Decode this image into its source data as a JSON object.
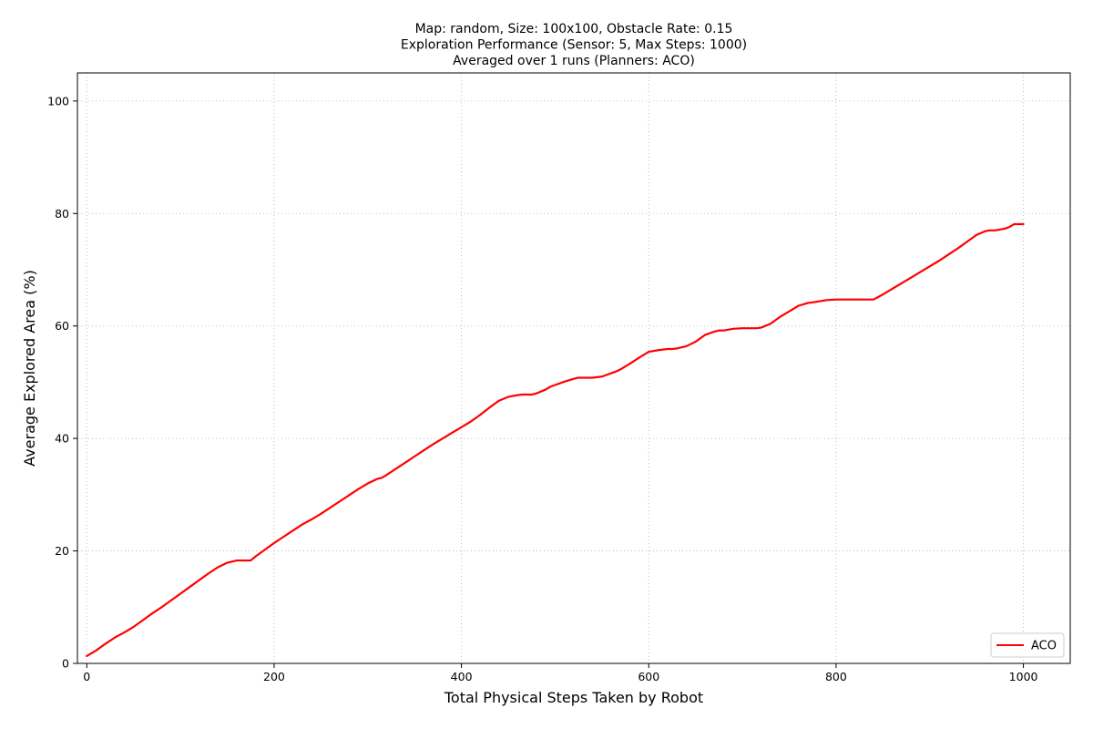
{
  "chart_data": {
    "type": "line",
    "title_lines": [
      "Map: random, Size: 100x100, Obstacle Rate: 0.15",
      "Exploration Performance (Sensor: 5, Max Steps: 1000)",
      "Averaged over 1 runs (Planners: ACO)"
    ],
    "xlabel": "Total Physical Steps Taken by Robot",
    "ylabel": "Average Explored Area (%)",
    "xlim": [
      -10,
      1050
    ],
    "ylim": [
      0,
      105
    ],
    "xticks": [
      0,
      200,
      400,
      600,
      800,
      1000
    ],
    "yticks": [
      0,
      20,
      40,
      60,
      80,
      100
    ],
    "xtick_labels": [
      "0",
      "200",
      "400",
      "600",
      "800",
      "1000"
    ],
    "ytick_labels": [
      "0",
      "20",
      "40",
      "60",
      "80",
      "100"
    ],
    "grid": true,
    "legend_position": "bottom-right",
    "series": [
      {
        "name": "ACO",
        "color": "#ff0000",
        "x": [
          0,
          10,
          20,
          30,
          40,
          50,
          60,
          70,
          80,
          90,
          100,
          110,
          120,
          130,
          140,
          150,
          160,
          165,
          175,
          180,
          190,
          200,
          210,
          220,
          230,
          240,
          250,
          260,
          270,
          280,
          290,
          300,
          310,
          315,
          320,
          330,
          340,
          350,
          360,
          370,
          380,
          390,
          400,
          410,
          420,
          430,
          440,
          450,
          460,
          465,
          475,
          480,
          490,
          495,
          500,
          510,
          520,
          525,
          540,
          550,
          560,
          565,
          570,
          580,
          590,
          600,
          610,
          620,
          625,
          630,
          640,
          650,
          660,
          670,
          675,
          680,
          690,
          700,
          715,
          720,
          730,
          740,
          750,
          760,
          770,
          775,
          790,
          800,
          810,
          820,
          830,
          840,
          850,
          860,
          870,
          880,
          890,
          900,
          910,
          920,
          930,
          940,
          950,
          960,
          965,
          970,
          980,
          985,
          990,
          995,
          1000
        ],
        "values": [
          1.3,
          2.3,
          3.5,
          4.6,
          5.5,
          6.5,
          7.7,
          8.9,
          10.0,
          11.2,
          12.4,
          13.6,
          14.8,
          16.0,
          17.1,
          17.9,
          18.3,
          18.3,
          18.3,
          19.0,
          20.2,
          21.4,
          22.5,
          23.6,
          24.7,
          25.6,
          26.6,
          27.7,
          28.8,
          29.9,
          31.0,
          32.0,
          32.8,
          33.0,
          33.5,
          34.6,
          35.7,
          36.8,
          37.9,
          39.0,
          40.0,
          41.0,
          42.0,
          43.0,
          44.2,
          45.5,
          46.7,
          47.4,
          47.7,
          47.8,
          47.8,
          48.0,
          48.7,
          49.2,
          49.5,
          50.1,
          50.6,
          50.8,
          50.8,
          51.0,
          51.6,
          51.9,
          52.3,
          53.3,
          54.4,
          55.4,
          55.7,
          55.9,
          55.9,
          56.0,
          56.4,
          57.2,
          58.4,
          59.0,
          59.2,
          59.2,
          59.5,
          59.6,
          59.6,
          59.7,
          60.4,
          61.6,
          62.6,
          63.6,
          64.1,
          64.2,
          64.6,
          64.7,
          64.7,
          64.7,
          64.7,
          64.7,
          65.6,
          66.6,
          67.6,
          68.6,
          69.6,
          70.6,
          71.6,
          72.7,
          73.8,
          75.0,
          76.2,
          76.9,
          77.0,
          77.0,
          77.3,
          77.6,
          78.1,
          78.1,
          78.1
        ]
      }
    ]
  }
}
